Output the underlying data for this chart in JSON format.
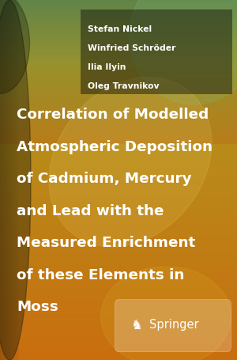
{
  "authors": [
    "Stefan Nickel",
    "Winfried Schröder",
    "Ilia Ilyin",
    "Oleg Travnikov"
  ],
  "title_lines": [
    "Correlation of Modelled",
    "Atmospheric Deposition",
    "of Cadmium, Mercury",
    "and Lead with the",
    "Measured Enrichment",
    "of these Elements in",
    "Moss"
  ],
  "springer_text": "Springer",
  "author_text_color": "#ffffff",
  "title_text_color": "#ffffff",
  "springer_text_color": "#ffffff",
  "figsize": [
    3.0,
    4.55
  ],
  "dpi": 100
}
